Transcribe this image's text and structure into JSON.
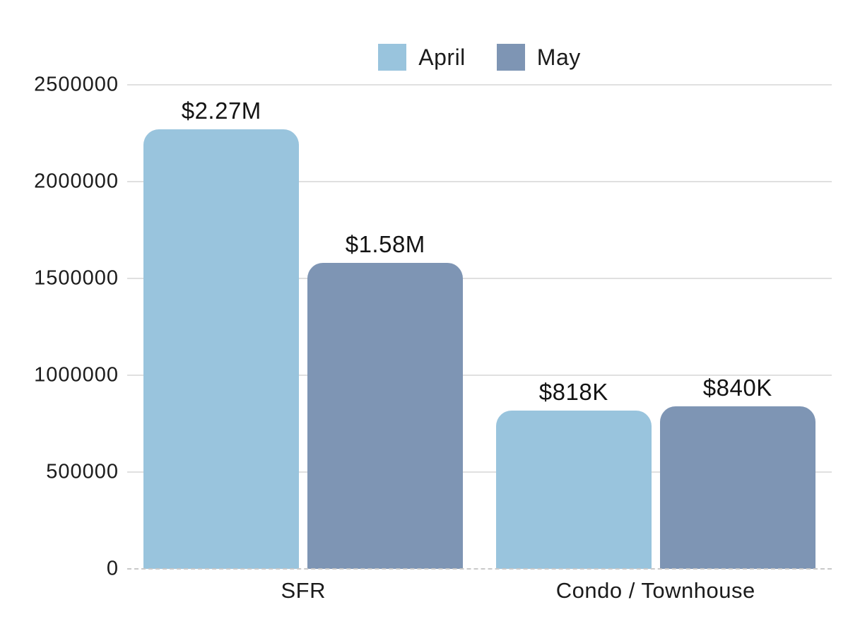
{
  "chart_data": {
    "type": "bar",
    "title": "",
    "xlabel": "",
    "ylabel": "",
    "categories": [
      "SFR",
      "Condo / Townhouse"
    ],
    "series": [
      {
        "name": "April",
        "color": "#99C4DD",
        "values": [
          2270000,
          818000
        ],
        "value_labels": [
          "$2.27M",
          "$818K"
        ]
      },
      {
        "name": "May",
        "color": "#7E95B4",
        "values": [
          1580000,
          840000
        ],
        "value_labels": [
          "$1.58M",
          "$840K"
        ]
      }
    ],
    "ylim": [
      0,
      2500000
    ],
    "yticks": [
      0,
      500000,
      1000000,
      1500000,
      2000000,
      2500000
    ],
    "ytick_labels": [
      "0",
      "500000",
      "1000000",
      "1500000",
      "2000000",
      "2500000"
    ],
    "grid": true,
    "legend_position": "top-center"
  },
  "colors": {
    "april_bar": "#99C4DD",
    "may_bar": "#7E95B4",
    "gridline": "#E0E0E0",
    "baseline_dashed": "#C9C9C9",
    "text": "#1B1B1B",
    "background": "#FFFFFF"
  }
}
